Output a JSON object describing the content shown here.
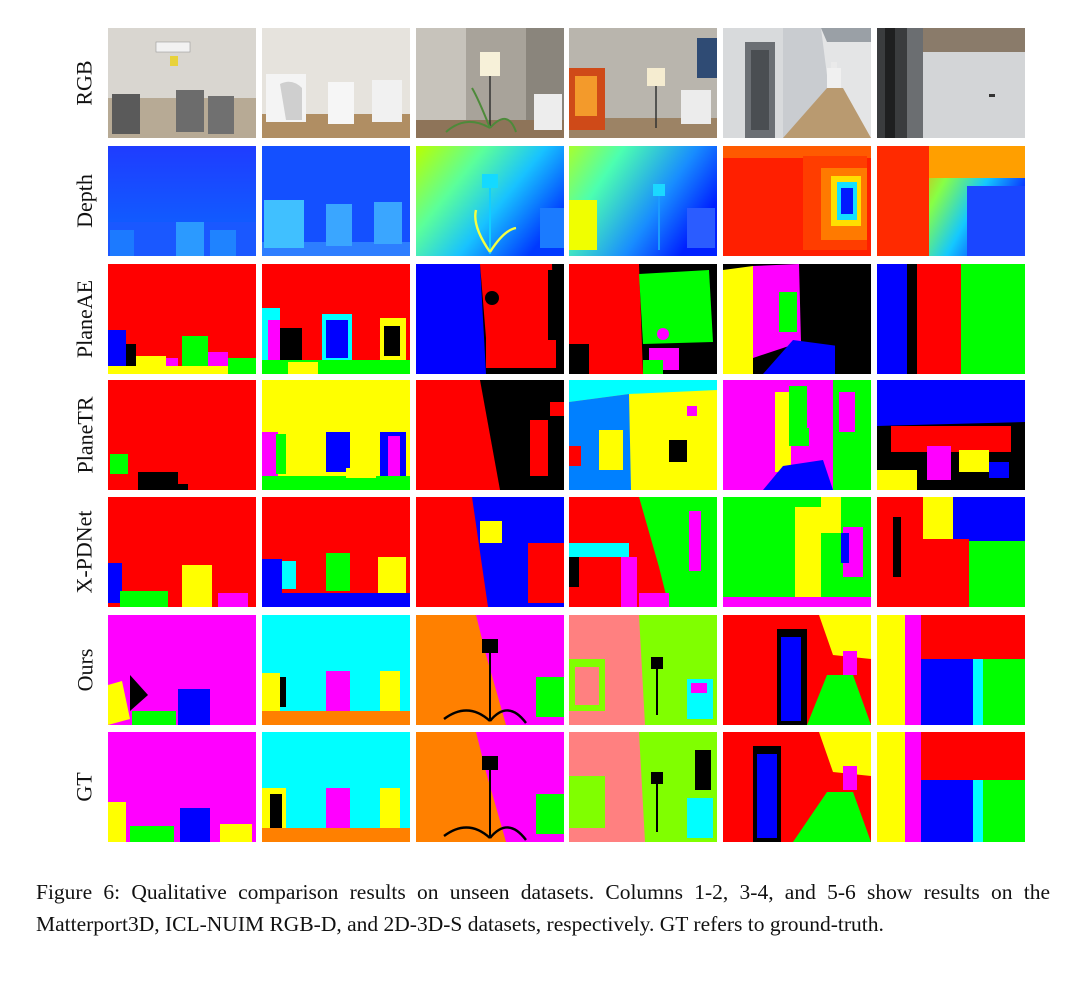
{
  "figure": {
    "row_labels": [
      "RGB",
      "Depth",
      "PlaneAE",
      "PlaneTR",
      "X-PDNet",
      "Ours",
      "GT"
    ],
    "column_count": 6,
    "column_datasets": [
      "Matterport3D",
      "Matterport3D",
      "ICL-NUIM RGB-D",
      "ICL-NUIM RGB-D",
      "2D-3D-S",
      "2D-3D-S"
    ]
  },
  "caption": {
    "text": "Figure 6: Qualitative comparison results on unseen datasets. Columns 1-2, 3-4, and 5-6 show results on the Matterport3D, ICL-NUIM RGB-D, and 2D-3D-S datasets, respectively. GT refers to ground-truth."
  },
  "palette": {
    "red": "#ff0000",
    "green": "#00ff00",
    "blue": "#0000ff",
    "yellow": "#ffff00",
    "magenta": "#ff00ff",
    "cyan": "#00ffff",
    "orange": "#ff8000",
    "salmon": "#ff8080",
    "lime": "#80ff00",
    "azure": "#0080ff",
    "black": "#000000"
  }
}
